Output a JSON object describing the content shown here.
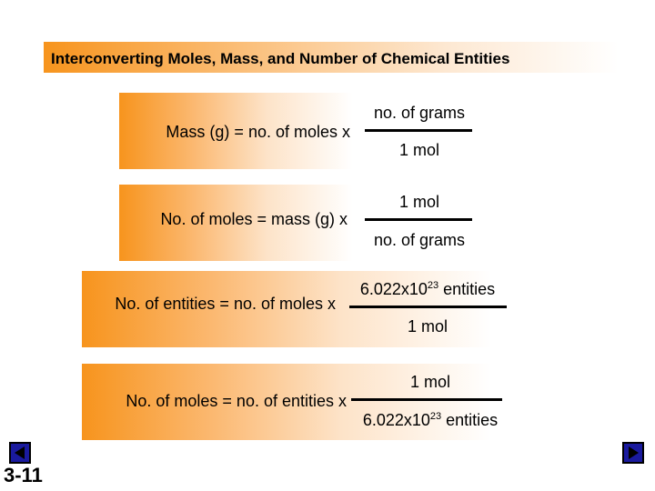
{
  "title": "Interconverting Moles, Mass, and Number of Chemical Entities",
  "equations": [
    {
      "lhs": "Mass (g) = no. of moles x",
      "numerator": "no. of grams",
      "denominator": "1 mol"
    },
    {
      "lhs": "No. of moles = mass (g) x",
      "numerator": "1 mol",
      "denominator": "no. of grams"
    },
    {
      "lhs": "No. of entities = no. of moles x",
      "numerator_base": "6.022x10",
      "numerator_exp": "23",
      "numerator_tail": " entities",
      "denominator": "1 mol"
    },
    {
      "lhs": "No. of moles = no. of entities x",
      "numerator": "1 mol",
      "denominator_base": "6.022x10",
      "denominator_exp": "23",
      "denominator_tail": " entities"
    }
  ],
  "slide_number": "3-11",
  "nav": {
    "prev_icon": "triangle-left-icon",
    "next_icon": "triangle-right-icon"
  },
  "colors": {
    "accent": "#f7941d",
    "button": "#1a1a9e"
  }
}
